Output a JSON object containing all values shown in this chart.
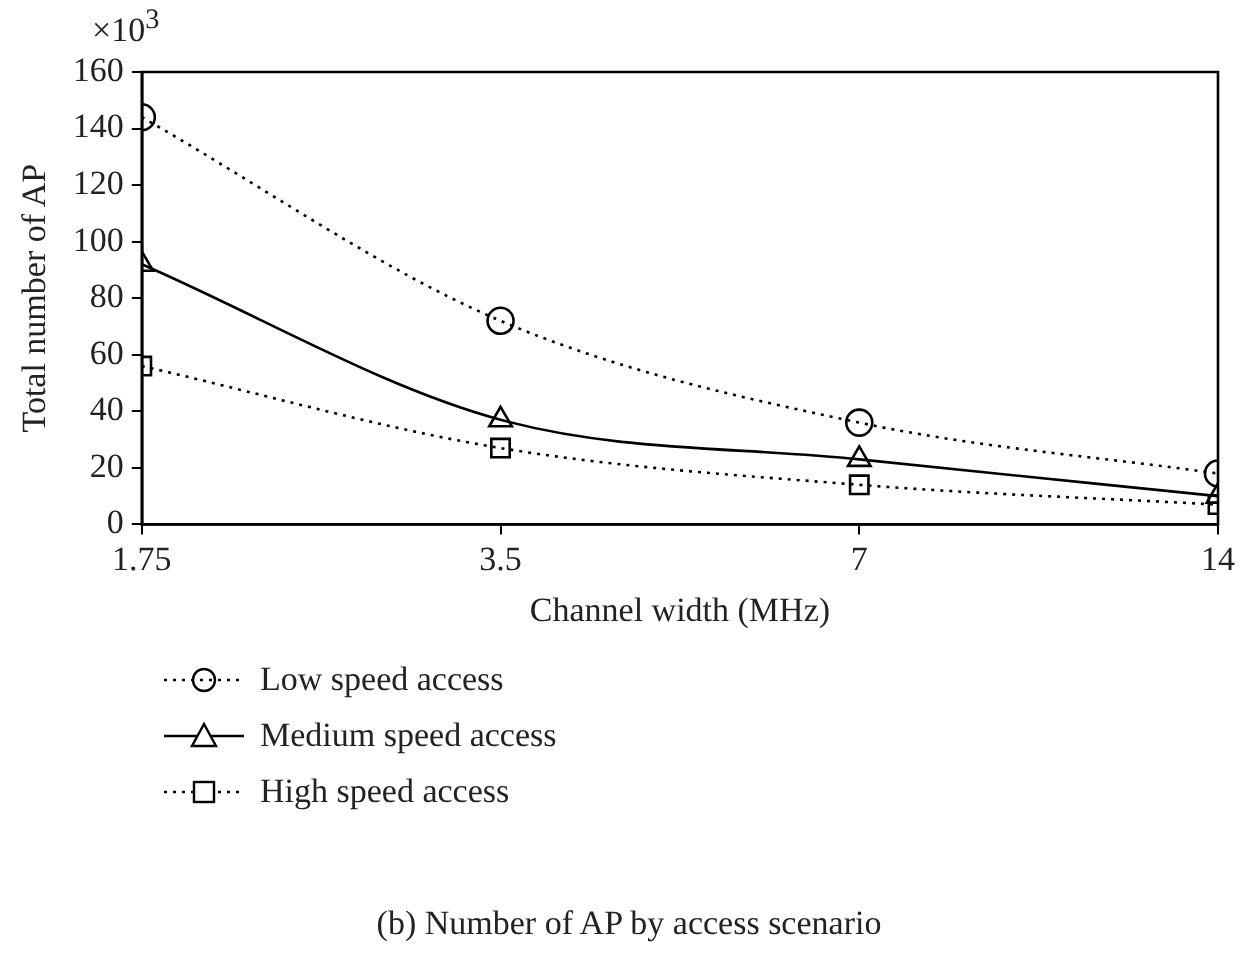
{
  "chart_data": {
    "type": "line",
    "title": "(b)  Number of AP by access scenario",
    "xlabel": "Channel width (MHz)",
    "ylabel": "Total number of AP",
    "annotations": [
      "×10$^{3}$"
    ],
    "x": [
      1.75,
      3.5,
      7,
      14
    ],
    "log": "x",
    "xlim": [
      1.75,
      14
    ],
    "xticks": [
      1.75,
      3.5,
      7,
      14
    ],
    "ylim": [
      0,
      160
    ],
    "yticks": [
      0,
      20,
      40,
      60,
      80,
      100,
      120,
      140,
      160
    ],
    "grid": false,
    "legend": "bottom",
    "series": [
      {
        "name": "Low speed access",
        "color": "#000000",
        "values": [
          144,
          72,
          36,
          18
        ],
        "marker": "circle",
        "line_style": "dotted"
      },
      {
        "name": "Medium speed access",
        "color": "#000000",
        "values": [
          92,
          37,
          23,
          10
        ],
        "marker": "triangle",
        "line_style": "solid"
      },
      {
        "name": "High speed access",
        "color": "#000000",
        "values": [
          56,
          27,
          14,
          7
        ],
        "marker": "square",
        "line_style": "dotted"
      }
    ]
  }
}
